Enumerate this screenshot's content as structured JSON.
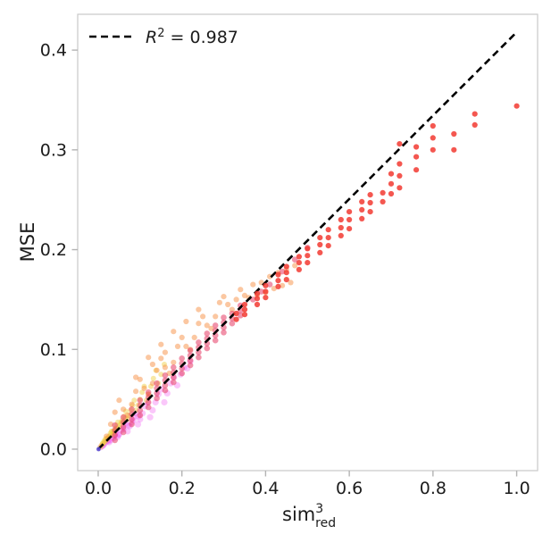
{
  "figure": {
    "background": "#ffffff",
    "spine_color": "#c9c9c9",
    "tick_color": "#b3b3b3",
    "text_color": "#1c1c1c"
  },
  "chart_data": {
    "type": "scatter",
    "title": "",
    "xlabel": {
      "base": "sim",
      "superscript": "3",
      "subscript": "red"
    },
    "ylabel": "MSE",
    "xlim": [
      -0.049,
      1.05
    ],
    "ylim": [
      -0.0215,
      0.4359
    ],
    "grid": false,
    "xticks": {
      "values": [
        0,
        0.2,
        0.4,
        0.6,
        0.8,
        1.0
      ],
      "labels": [
        "0.0",
        "0.2",
        "0.4",
        "0.6",
        "0.8",
        "1.0"
      ]
    },
    "yticks": {
      "values": [
        0,
        0.1,
        0.2,
        0.3,
        0.4
      ],
      "labels": [
        "0.0",
        "0.1",
        "0.2",
        "0.3",
        "0.4"
      ]
    },
    "legend": {
      "position": "upper-left",
      "entries": [
        {
          "label": "R² = 0.987",
          "symbol": "R",
          "superscript": "2",
          "rest": " = 0.987",
          "line_style": "dashed",
          "color": "#000000"
        }
      ]
    },
    "fit_line": {
      "slope": 0.418,
      "intercept": 0,
      "x_start": 0.0,
      "x_end": 1.0,
      "style": "dashed",
      "color": "#000000",
      "r_squared": 0.987
    },
    "series": [
      {
        "name": "magenta-cluster",
        "color": "#ef45ee",
        "opacity": 0.3,
        "radius": 3.6,
        "points": [
          [
            0.006,
            0.002
          ],
          [
            0.01,
            0.003
          ],
          [
            0.014,
            0.005
          ],
          [
            0.018,
            0.007
          ],
          [
            0.022,
            0.009
          ],
          [
            0.026,
            0.007
          ],
          [
            0.03,
            0.009
          ],
          [
            0.034,
            0.012
          ],
          [
            0.038,
            0.014
          ],
          [
            0.042,
            0.017
          ],
          [
            0.046,
            0.012
          ],
          [
            0.05,
            0.015
          ],
          [
            0.055,
            0.019
          ],
          [
            0.06,
            0.023
          ],
          [
            0.065,
            0.026
          ],
          [
            0.07,
            0.018
          ],
          [
            0.075,
            0.023
          ],
          [
            0.08,
            0.027
          ],
          [
            0.085,
            0.032
          ],
          [
            0.09,
            0.036
          ],
          [
            0.095,
            0.025
          ],
          [
            0.1,
            0.03
          ],
          [
            0.106,
            0.036
          ],
          [
            0.112,
            0.043
          ],
          [
            0.118,
            0.047
          ],
          [
            0.124,
            0.032
          ],
          [
            0.13,
            0.039
          ],
          [
            0.137,
            0.047
          ],
          [
            0.144,
            0.055
          ],
          [
            0.151,
            0.06
          ],
          [
            0.158,
            0.047
          ],
          [
            0.165,
            0.056
          ],
          [
            0.173,
            0.066
          ],
          [
            0.181,
            0.072
          ],
          [
            0.189,
            0.064
          ],
          [
            0.197,
            0.075
          ],
          [
            0.205,
            0.082
          ],
          [
            0.213,
            0.081
          ],
          [
            0.22,
            0.088
          ],
          [
            0.012,
            0.004
          ],
          [
            0.024,
            0.008
          ],
          [
            0.036,
            0.011
          ],
          [
            0.048,
            0.014
          ],
          [
            0.06,
            0.02
          ],
          [
            0.072,
            0.024
          ],
          [
            0.084,
            0.029
          ],
          [
            0.096,
            0.033
          ]
        ]
      },
      {
        "name": "gold-cluster",
        "color": "#eecb39",
        "opacity": 0.45,
        "radius": 3.0,
        "points": [
          [
            0.005,
            0.002
          ],
          [
            0.008,
            0.004
          ],
          [
            0.011,
            0.006
          ],
          [
            0.014,
            0.008
          ],
          [
            0.017,
            0.01
          ],
          [
            0.02,
            0.009
          ],
          [
            0.023,
            0.011
          ],
          [
            0.026,
            0.013
          ],
          [
            0.029,
            0.016
          ],
          [
            0.032,
            0.018
          ],
          [
            0.035,
            0.015
          ],
          [
            0.038,
            0.017
          ],
          [
            0.041,
            0.021
          ],
          [
            0.044,
            0.024
          ],
          [
            0.047,
            0.027
          ],
          [
            0.05,
            0.022
          ],
          [
            0.054,
            0.025
          ],
          [
            0.058,
            0.029
          ],
          [
            0.062,
            0.033
          ],
          [
            0.066,
            0.038
          ],
          [
            0.07,
            0.03
          ],
          [
            0.074,
            0.034
          ],
          [
            0.078,
            0.039
          ],
          [
            0.082,
            0.044
          ],
          [
            0.086,
            0.049
          ],
          [
            0.09,
            0.039
          ],
          [
            0.095,
            0.044
          ],
          [
            0.1,
            0.05
          ],
          [
            0.105,
            0.057
          ],
          [
            0.11,
            0.063
          ],
          [
            0.115,
            0.049
          ],
          [
            0.12,
            0.055
          ],
          [
            0.126,
            0.063
          ],
          [
            0.132,
            0.071
          ],
          [
            0.138,
            0.079
          ],
          [
            0.144,
            0.066
          ],
          [
            0.15,
            0.075
          ],
          [
            0.158,
            0.085
          ],
          [
            0.01,
            0.005
          ],
          [
            0.02,
            0.011
          ],
          [
            0.03,
            0.014
          ],
          [
            0.04,
            0.019
          ],
          [
            0.015,
            0.007
          ],
          [
            0.025,
            0.012
          ],
          [
            0.035,
            0.018
          ],
          [
            0.045,
            0.021
          ],
          [
            0.055,
            0.027
          ],
          [
            0.065,
            0.031
          ]
        ]
      },
      {
        "name": "orange-scatter",
        "color": "#f78f44",
        "opacity": 0.5,
        "radius": 3.1,
        "points": [
          [
            0.02,
            0.013
          ],
          [
            0.03,
            0.025
          ],
          [
            0.04,
            0.037
          ],
          [
            0.05,
            0.049
          ],
          [
            0.06,
            0.04
          ],
          [
            0.07,
            0.034
          ],
          [
            0.08,
            0.045
          ],
          [
            0.09,
            0.058
          ],
          [
            0.1,
            0.07
          ],
          [
            0.11,
            0.061
          ],
          [
            0.12,
            0.055
          ],
          [
            0.13,
            0.066
          ],
          [
            0.14,
            0.079
          ],
          [
            0.15,
            0.091
          ],
          [
            0.16,
            0.082
          ],
          [
            0.17,
            0.076
          ],
          [
            0.18,
            0.087
          ],
          [
            0.19,
            0.103
          ],
          [
            0.2,
            0.112
          ],
          [
            0.21,
            0.103
          ],
          [
            0.22,
            0.1
          ],
          [
            0.23,
            0.112
          ],
          [
            0.24,
            0.126
          ],
          [
            0.25,
            0.133
          ],
          [
            0.26,
            0.124
          ],
          [
            0.27,
            0.121
          ],
          [
            0.28,
            0.133
          ],
          [
            0.29,
            0.147
          ],
          [
            0.3,
            0.153
          ],
          [
            0.31,
            0.145
          ],
          [
            0.32,
            0.14
          ],
          [
            0.33,
            0.15
          ],
          [
            0.34,
            0.16
          ],
          [
            0.35,
            0.154
          ],
          [
            0.36,
            0.152
          ],
          [
            0.37,
            0.165
          ],
          [
            0.38,
            0.154
          ],
          [
            0.39,
            0.167
          ],
          [
            0.4,
            0.157
          ],
          [
            0.41,
            0.173
          ],
          [
            0.42,
            0.161
          ],
          [
            0.43,
            0.177
          ],
          [
            0.44,
            0.164
          ],
          [
            0.45,
            0.18
          ],
          [
            0.46,
            0.167
          ],
          [
            0.47,
            0.184
          ],
          [
            0.12,
            0.092
          ],
          [
            0.15,
            0.105
          ],
          [
            0.18,
            0.118
          ],
          [
            0.21,
            0.128
          ],
          [
            0.24,
            0.14
          ],
          [
            0.13,
            0.085
          ],
          [
            0.16,
            0.097
          ],
          [
            0.09,
            0.072
          ]
        ]
      },
      {
        "name": "crimson-band",
        "color": "#e63a64",
        "opacity": 0.55,
        "radius": 3.3,
        "points": [
          [
            0.04,
            0.009
          ],
          [
            0.04,
            0.014
          ],
          [
            0.04,
            0.019
          ],
          [
            0.04,
            0.024
          ],
          [
            0.06,
            0.017
          ],
          [
            0.06,
            0.022
          ],
          [
            0.06,
            0.027
          ],
          [
            0.06,
            0.032
          ],
          [
            0.08,
            0.025
          ],
          [
            0.08,
            0.03
          ],
          [
            0.08,
            0.035
          ],
          [
            0.08,
            0.04
          ],
          [
            0.1,
            0.034
          ],
          [
            0.1,
            0.039
          ],
          [
            0.1,
            0.044
          ],
          [
            0.1,
            0.049
          ],
          [
            0.12,
            0.042
          ],
          [
            0.12,
            0.047
          ],
          [
            0.12,
            0.052
          ],
          [
            0.12,
            0.057
          ],
          [
            0.14,
            0.051
          ],
          [
            0.14,
            0.056
          ],
          [
            0.14,
            0.061
          ],
          [
            0.14,
            0.066
          ],
          [
            0.16,
            0.059
          ],
          [
            0.16,
            0.064
          ],
          [
            0.16,
            0.069
          ],
          [
            0.16,
            0.074
          ],
          [
            0.18,
            0.067
          ],
          [
            0.18,
            0.072
          ],
          [
            0.18,
            0.077
          ],
          [
            0.18,
            0.082
          ],
          [
            0.2,
            0.076
          ],
          [
            0.2,
            0.081
          ],
          [
            0.2,
            0.086
          ],
          [
            0.2,
            0.091
          ],
          [
            0.22,
            0.084
          ],
          [
            0.22,
            0.089
          ],
          [
            0.22,
            0.094
          ],
          [
            0.22,
            0.099
          ],
          [
            0.24,
            0.092
          ],
          [
            0.24,
            0.097
          ],
          [
            0.24,
            0.102
          ],
          [
            0.24,
            0.107
          ],
          [
            0.26,
            0.101
          ],
          [
            0.26,
            0.106
          ],
          [
            0.26,
            0.111
          ],
          [
            0.26,
            0.116
          ],
          [
            0.28,
            0.109
          ],
          [
            0.28,
            0.114
          ],
          [
            0.28,
            0.119
          ],
          [
            0.28,
            0.124
          ],
          [
            0.3,
            0.117
          ],
          [
            0.3,
            0.122
          ],
          [
            0.3,
            0.127
          ],
          [
            0.3,
            0.132
          ],
          [
            0.32,
            0.126
          ],
          [
            0.32,
            0.131
          ],
          [
            0.32,
            0.136
          ],
          [
            0.34,
            0.134
          ],
          [
            0.34,
            0.139
          ],
          [
            0.34,
            0.144
          ],
          [
            0.37,
            0.15
          ],
          [
            0.39,
            0.158
          ],
          [
            0.41,
            0.165
          ],
          [
            0.44,
            0.178
          ],
          [
            0.47,
            0.19
          ],
          [
            0.5,
            0.202
          ]
        ]
      },
      {
        "name": "red-columns",
        "color": "#f23a31",
        "opacity": 0.85,
        "radius": 3.1,
        "points": [
          [
            0.33,
            0.13
          ],
          [
            0.33,
            0.136
          ],
          [
            0.35,
            0.135
          ],
          [
            0.35,
            0.14
          ],
          [
            0.35,
            0.145
          ],
          [
            0.38,
            0.145
          ],
          [
            0.38,
            0.151
          ],
          [
            0.38,
            0.156
          ],
          [
            0.4,
            0.152
          ],
          [
            0.4,
            0.158
          ],
          [
            0.4,
            0.164
          ],
          [
            0.43,
            0.163
          ],
          [
            0.43,
            0.169
          ],
          [
            0.43,
            0.175
          ],
          [
            0.45,
            0.17
          ],
          [
            0.45,
            0.177
          ],
          [
            0.45,
            0.183
          ],
          [
            0.48,
            0.18
          ],
          [
            0.48,
            0.187
          ],
          [
            0.48,
            0.193
          ],
          [
            0.5,
            0.187
          ],
          [
            0.5,
            0.194
          ],
          [
            0.5,
            0.201
          ],
          [
            0.53,
            0.197
          ],
          [
            0.53,
            0.205
          ],
          [
            0.53,
            0.212
          ],
          [
            0.55,
            0.204
          ],
          [
            0.55,
            0.212
          ],
          [
            0.55,
            0.22
          ],
          [
            0.58,
            0.214
          ],
          [
            0.58,
            0.222
          ],
          [
            0.58,
            0.23
          ],
          [
            0.6,
            0.221
          ],
          [
            0.6,
            0.23
          ],
          [
            0.6,
            0.238
          ],
          [
            0.63,
            0.231
          ],
          [
            0.63,
            0.24
          ],
          [
            0.63,
            0.248
          ],
          [
            0.65,
            0.238
          ],
          [
            0.65,
            0.247
          ],
          [
            0.65,
            0.255
          ],
          [
            0.68,
            0.248
          ],
          [
            0.68,
            0.257
          ],
          [
            0.7,
            0.256
          ],
          [
            0.7,
            0.266
          ],
          [
            0.7,
            0.276
          ],
          [
            0.72,
            0.262
          ],
          [
            0.72,
            0.274
          ],
          [
            0.72,
            0.286
          ],
          [
            0.72,
            0.306
          ],
          [
            0.76,
            0.28
          ],
          [
            0.76,
            0.293
          ],
          [
            0.76,
            0.303
          ],
          [
            0.8,
            0.3
          ],
          [
            0.8,
            0.312
          ],
          [
            0.8,
            0.324
          ],
          [
            0.85,
            0.3
          ],
          [
            0.85,
            0.316
          ],
          [
            0.9,
            0.325
          ],
          [
            0.9,
            0.336
          ],
          [
            1.0,
            0.344
          ]
        ]
      },
      {
        "name": "origin-dot",
        "color": "#5b4bd0",
        "opacity": 0.9,
        "radius": 2.4,
        "points": [
          [
            0.001,
            0.0
          ]
        ]
      }
    ]
  }
}
